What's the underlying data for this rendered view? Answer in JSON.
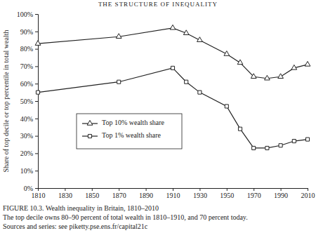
{
  "chart_data": {
    "type": "line",
    "annotations": [
      "THE STRUCTURE OF INEQUALITY",
      "Sources and series: see piketty.pse.ens.fr/capital21c"
    ],
    "title": "FIGURE 10.3. Wealth inequality in Britain, 1810–2010",
    "subtitle": "The top decile owns 80–90 percent of total wealth in 1810–1910, and 70 percent today.",
    "y_label": "Share of top decile or top percentile in total wealth",
    "x": [
      1810,
      1870,
      1910,
      1920,
      1930,
      1950,
      1960,
      1970,
      1980,
      1990,
      2000,
      2010
    ],
    "series": [
      {
        "name": "Top 10% wealth share",
        "color": "#222222",
        "marker": "triangle",
        "line_style": "solid",
        "values": [
          83,
          87,
          92,
          89,
          85,
          77,
          72,
          64,
          63,
          64,
          69,
          71
        ]
      },
      {
        "name": "Top 1% wealth share",
        "color": "#222222",
        "marker": "square",
        "line_style": "solid",
        "values": [
          55,
          61,
          69,
          61,
          55,
          47,
          34,
          23,
          23,
          24.5,
          27,
          28
        ]
      }
    ],
    "xlim": [
      1810,
      2010
    ],
    "xticks": [
      1810,
      1830,
      1850,
      1870,
      1890,
      1910,
      1930,
      1950,
      1970,
      1990,
      2010
    ],
    "ylim": [
      0,
      100
    ],
    "yticks": [
      {
        "value": 0,
        "label": "0%"
      },
      {
        "value": 10,
        "label": "10%"
      },
      {
        "value": 20,
        "label": "20%"
      },
      {
        "value": 30,
        "label": "30%"
      },
      {
        "value": 40,
        "label": "40%"
      },
      {
        "value": 50,
        "label": "50%"
      },
      {
        "value": 60,
        "label": "60%"
      },
      {
        "value": 70,
        "label": "70%"
      },
      {
        "value": 80,
        "label": "80%"
      },
      {
        "value": 90,
        "label": "90%"
      },
      {
        "value": 100,
        "label": "100%"
      }
    ],
    "grid": false,
    "legend": "bottom-left"
  }
}
